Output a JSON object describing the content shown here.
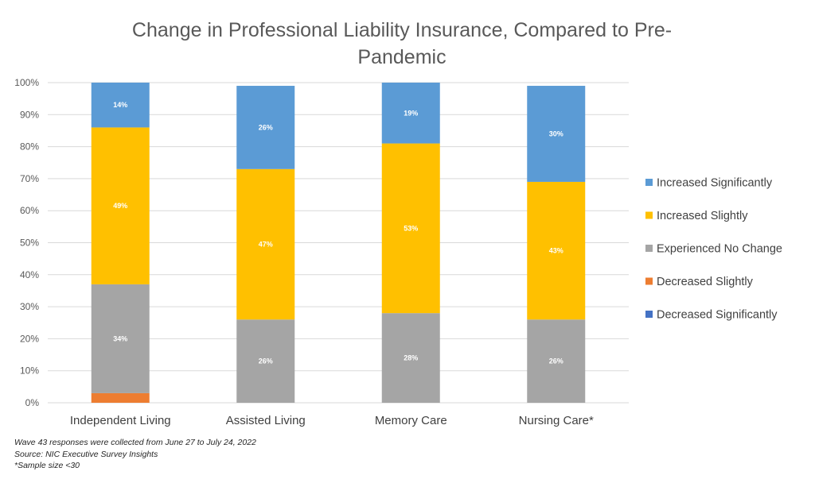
{
  "chart_data": {
    "type": "bar",
    "stacked": true,
    "title_lines": [
      "Change in Professional Liability Insurance, Compared to Pre-",
      "Pandemic"
    ],
    "title": "Change in Professional Liability Insurance, Compared to Pre-Pandemic",
    "xlabel": "",
    "ylabel": "",
    "ylim": [
      0,
      100
    ],
    "y_ticks": [
      0,
      10,
      20,
      30,
      40,
      50,
      60,
      70,
      80,
      90,
      100
    ],
    "y_tick_format": "percent",
    "grid": true,
    "legend_position": "right",
    "categories": [
      "Independent Living",
      "Assisted Living",
      "Memory Care",
      "Nursing Care*"
    ],
    "series": [
      {
        "name": "Decreased Significantly",
        "color": "#4472C4",
        "values": [
          0,
          0,
          0,
          0
        ],
        "labels": [
          "",
          "",
          "",
          ""
        ]
      },
      {
        "name": "Decreased Slightly",
        "color": "#ED7D31",
        "values": [
          3,
          0,
          0,
          0
        ],
        "labels": [
          "",
          "",
          "",
          ""
        ]
      },
      {
        "name": "Experienced No Change",
        "color": "#A5A5A5",
        "values": [
          34,
          26,
          28,
          26
        ],
        "labels": [
          "34%",
          "26%",
          "28%",
          "26%"
        ]
      },
      {
        "name": "Increased Slightly",
        "color": "#FFC000",
        "values": [
          49,
          47,
          53,
          43
        ],
        "labels": [
          "49%",
          "47%",
          "53%",
          "43%"
        ]
      },
      {
        "name": "Increased Significantly",
        "color": "#5B9BD5",
        "values": [
          14,
          26,
          19,
          30
        ],
        "labels": [
          "14%",
          "26%",
          "19%",
          "30%"
        ]
      }
    ],
    "legend_order": [
      "Increased Significantly",
      "Increased Slightly",
      "Experienced No Change",
      "Decreased Slightly",
      "Decreased Significantly"
    ]
  },
  "notes": [
    "Wave 43 responses were collected from June 27 to July 24, 2022",
    "Source: NIC Executive Survey Insights",
    "*Sample size <30"
  ]
}
